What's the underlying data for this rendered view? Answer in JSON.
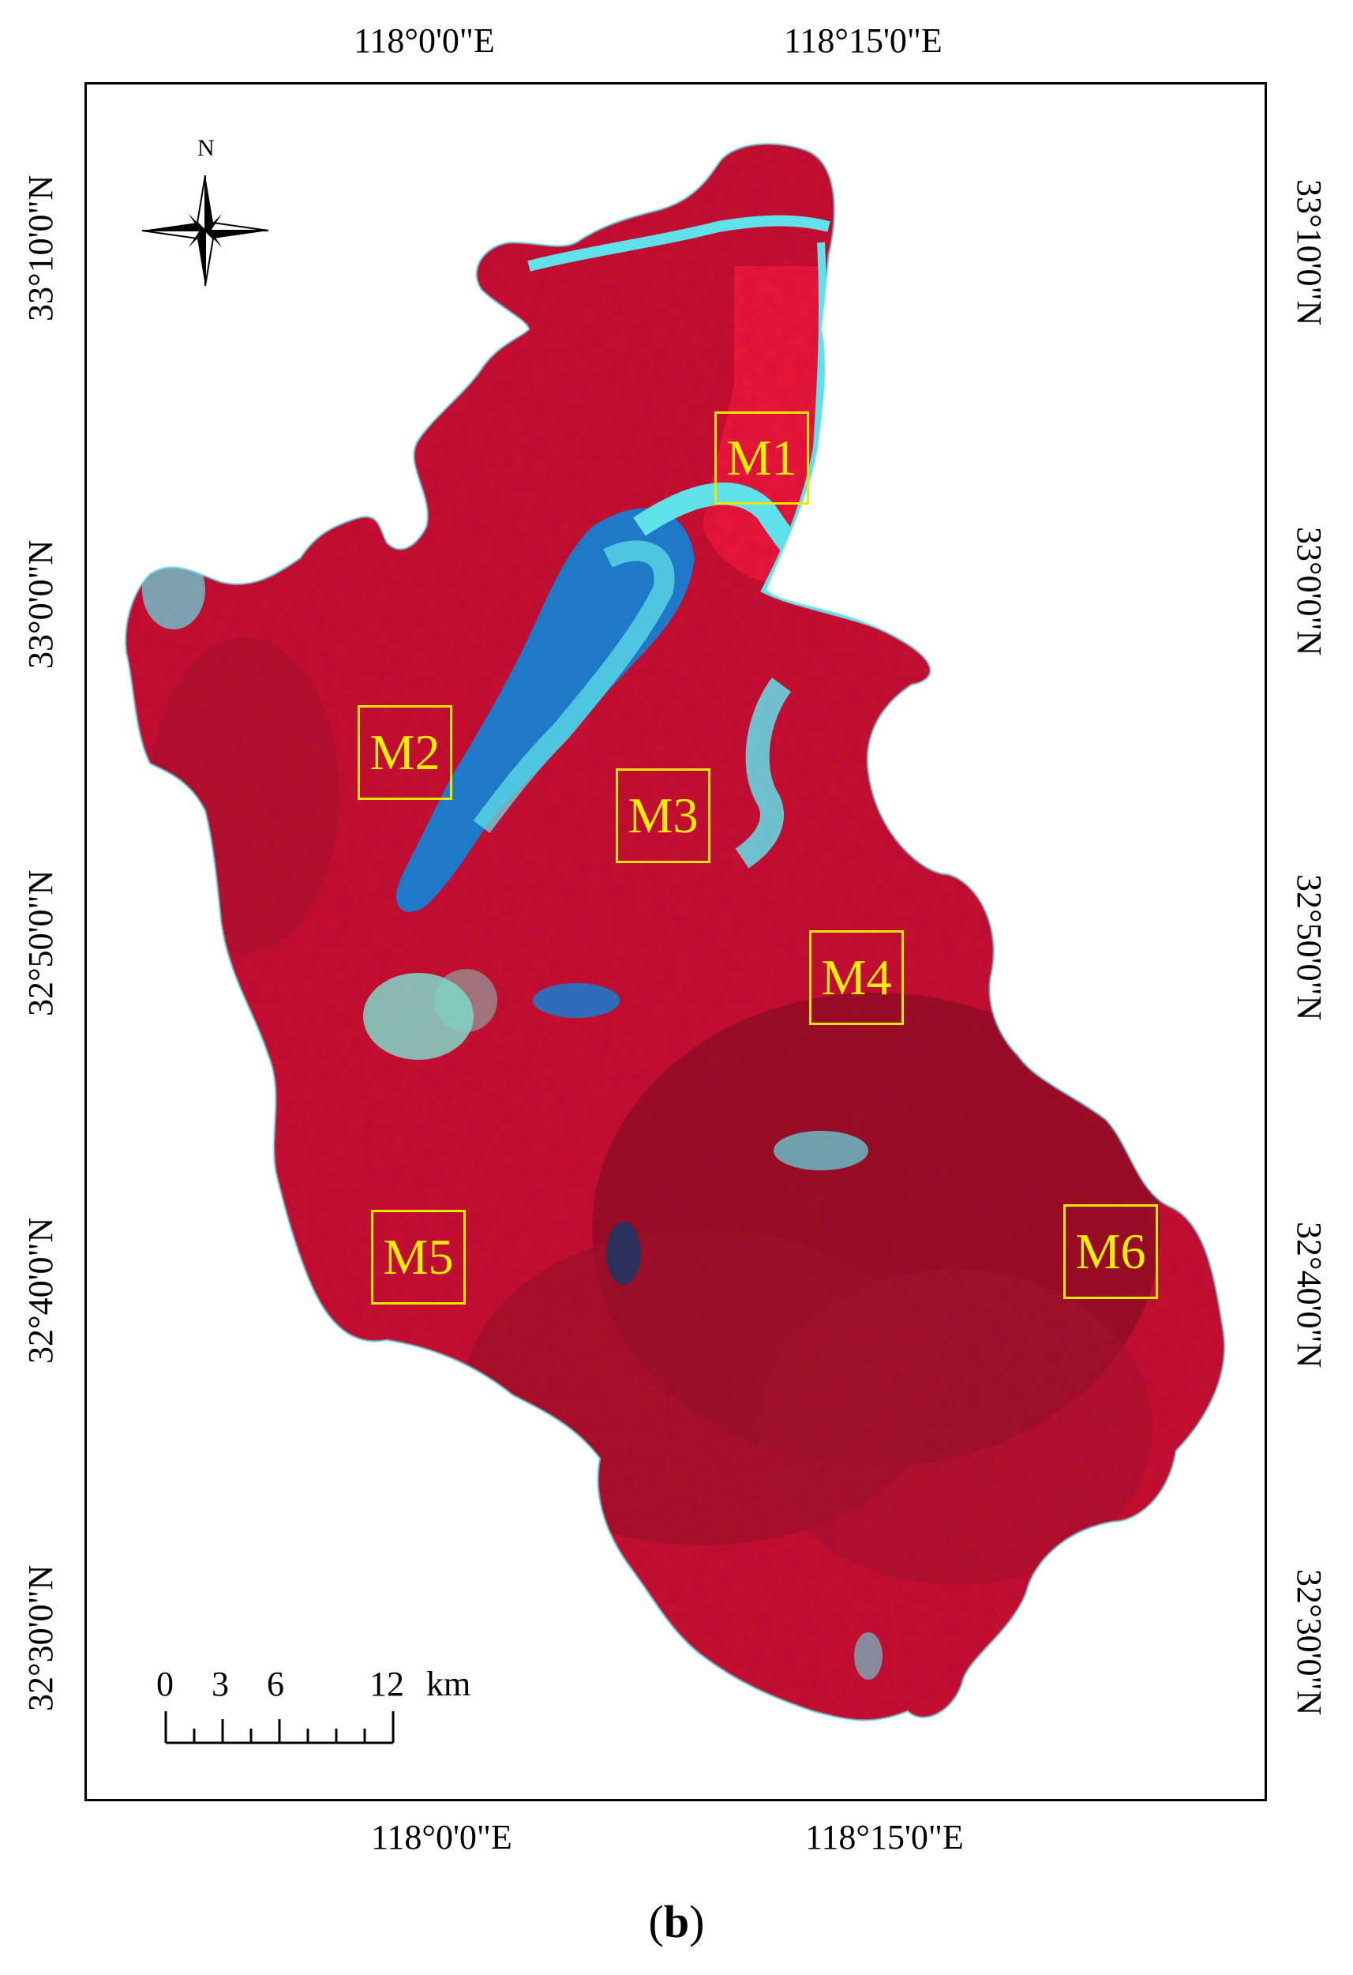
{
  "top_lon_labels": [
    "118°0'0\"E",
    "118°15'0\"E"
  ],
  "bottom_lon_labels": [
    "118°0'0\"E",
    "118°15'0\"E"
  ],
  "left_lat_labels": [
    "33°10'0\"N",
    "33°0'0\"N",
    "32°50'0\"N",
    "32°40'0\"N",
    "32°30'0\"N"
  ],
  "right_lat_labels": [
    "33°10'0\"N",
    "33°0'0\"N",
    "32°50'0\"N",
    "32°40'0\"N",
    "32°30'0\"N"
  ],
  "north_arrow": {
    "label": "N",
    "icon": "compass-rose-icon"
  },
  "scale_bar": {
    "ticks": [
      "0",
      "3",
      "6",
      "12"
    ],
    "unit": "km"
  },
  "zones": [
    "M1",
    "M2",
    "M3",
    "M4",
    "M5",
    "M6"
  ],
  "caption": {
    "open": "(",
    "letter": "b",
    "close": ")"
  },
  "colors": {
    "vegetation": "#c8102e",
    "dense_vegetation": "#8e0f1f",
    "water": "#1f78c8",
    "shallow_water": "#60e0e8",
    "urban": "#7fd8c8",
    "zone_box": "#e8e800"
  }
}
